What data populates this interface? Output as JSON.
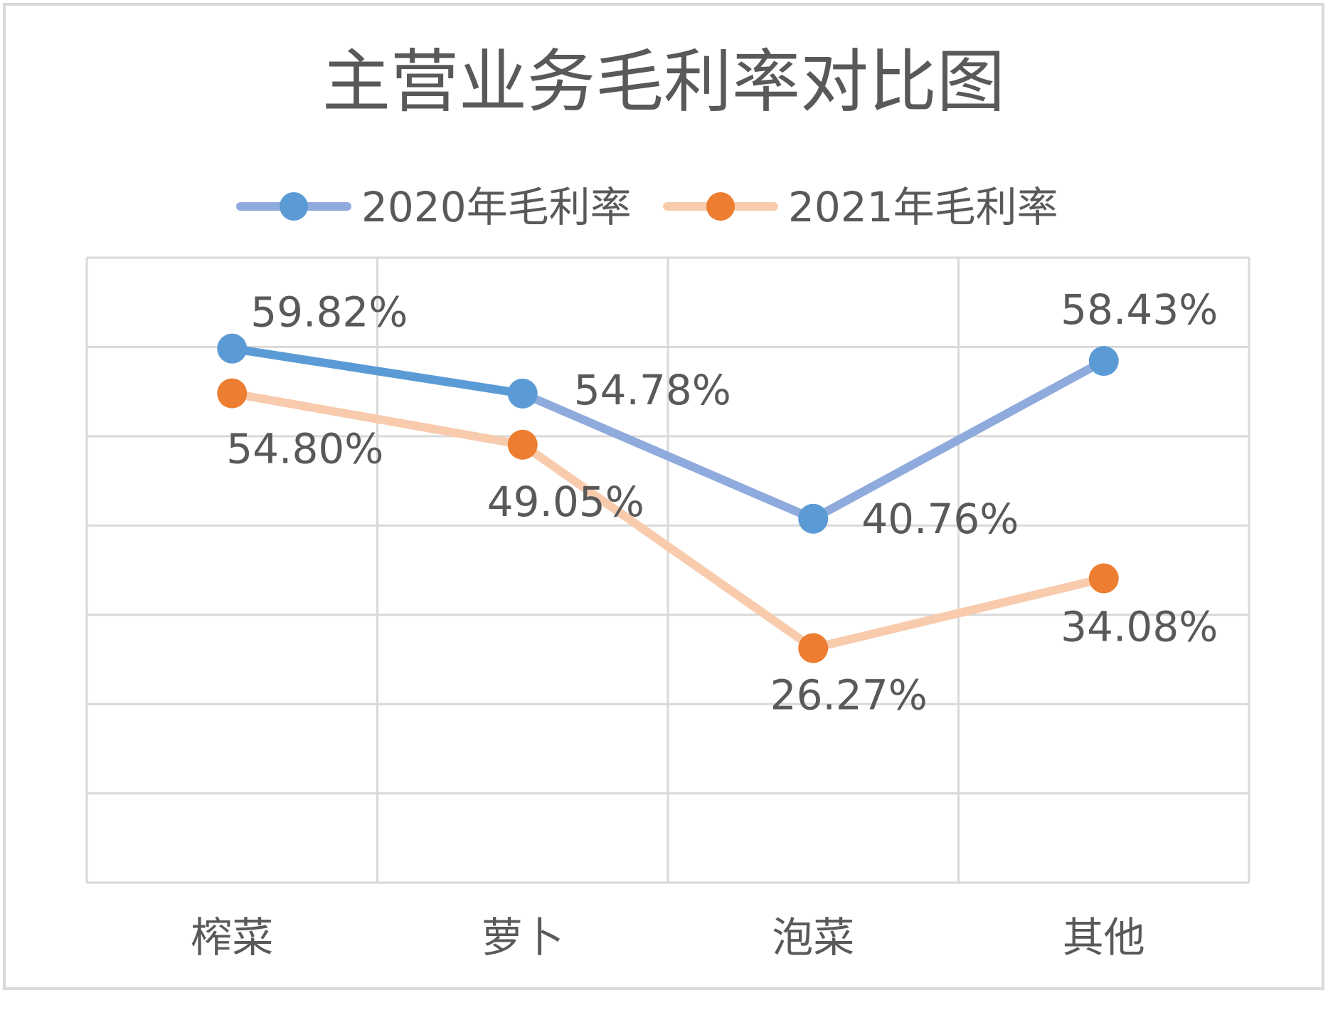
{
  "chart_data": {
    "type": "line",
    "title": "主营业务毛利率对比图",
    "categories": [
      "榨菜",
      "萝卜",
      "泡菜",
      "其他"
    ],
    "series": [
      {
        "name": "2020年毛利率",
        "values": [
          59.82,
          54.78,
          40.76,
          58.43
        ],
        "labels": [
          "59.82%",
          "54.78%",
          "40.76%",
          "58.43%"
        ],
        "line_color": "#8faadc",
        "marker_color": "#5b9bd5",
        "start_color": "#5b9bd5"
      },
      {
        "name": "2021年毛利率",
        "values": [
          54.8,
          49.05,
          26.27,
          34.08
        ],
        "labels": [
          "54.80%",
          "49.05%",
          "26.27%",
          "34.08%"
        ],
        "line_color": "#f8cbad",
        "marker_color": "#ed7d31",
        "start_color": "#f8cbad"
      }
    ],
    "ylim": [
      0,
      70
    ],
    "ytick_step": 10,
    "grid": true,
    "legend_position": "top",
    "xlabel": "",
    "ylabel": ""
  }
}
